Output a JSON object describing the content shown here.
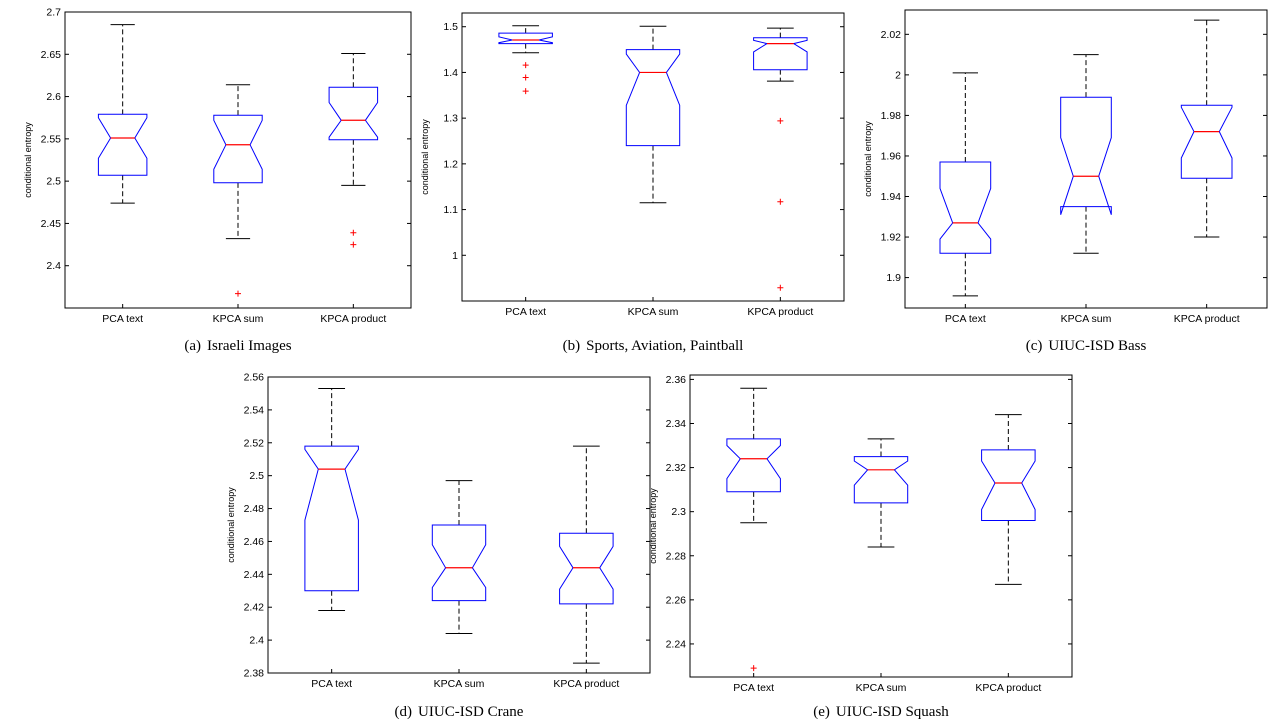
{
  "chart_data": [
    {
      "type": "box",
      "caption_tag": "(a)",
      "caption": "Israeli Images",
      "ylabel": "conditional entropy",
      "ylim": [
        2.35,
        2.7
      ],
      "yticks": [
        2.4,
        2.45,
        2.5,
        2.55,
        2.6,
        2.65,
        2.7
      ],
      "ytick_labels": [
        "2.4",
        "2.45",
        "2.5",
        "2.55",
        "2.6",
        "2.65",
        "2.7"
      ],
      "categories": [
        "PCA text",
        "KPCA sum",
        "KPCA product"
      ],
      "boxes": [
        {
          "whisker_low": 2.474,
          "q1": 2.507,
          "median": 2.551,
          "q3": 2.579,
          "whisker_high": 2.685,
          "notch_low": 2.527,
          "notch_high": 2.575,
          "outliers": []
        },
        {
          "whisker_low": 2.432,
          "q1": 2.498,
          "median": 2.543,
          "q3": 2.578,
          "whisker_high": 2.614,
          "notch_low": 2.514,
          "notch_high": 2.572,
          "outliers": [
            2.367
          ]
        },
        {
          "whisker_low": 2.495,
          "q1": 2.549,
          "median": 2.572,
          "q3": 2.611,
          "whisker_high": 2.651,
          "notch_low": 2.552,
          "notch_high": 2.593,
          "outliers": [
            2.439,
            2.425
          ]
        }
      ]
    },
    {
      "type": "box",
      "caption_tag": "(b)",
      "caption": "Sports, Aviation, Paintball",
      "ylabel": "conditional entropy",
      "ylim": [
        0.9,
        1.53
      ],
      "yticks": [
        1.0,
        1.1,
        1.2,
        1.3,
        1.4,
        1.5
      ],
      "ytick_labels": [
        "1",
        "1.1",
        "1.2",
        "1.3",
        "1.4",
        "1.5"
      ],
      "categories": [
        "PCA text",
        "KPCA sum",
        "KPCA product"
      ],
      "boxes": [
        {
          "whisker_low": 1.443,
          "q1": 1.463,
          "median": 1.471,
          "q3": 1.486,
          "whisker_high": 1.502,
          "notch_low": 1.465,
          "notch_high": 1.478,
          "outliers": [
            1.416,
            1.389,
            1.359
          ]
        },
        {
          "whisker_low": 1.115,
          "q1": 1.24,
          "median": 1.4,
          "q3": 1.45,
          "whisker_high": 1.501,
          "notch_low": 1.328,
          "notch_high": 1.44,
          "outliers": []
        },
        {
          "whisker_low": 1.381,
          "q1": 1.406,
          "median": 1.463,
          "q3": 1.476,
          "whisker_high": 1.497,
          "notch_low": 1.445,
          "notch_high": 1.47,
          "outliers": [
            1.294,
            1.117,
            0.929
          ]
        }
      ]
    },
    {
      "type": "box",
      "caption_tag": "(c)",
      "caption": "UIUC-ISD Bass",
      "ylabel": "conditional entropy",
      "ylim": [
        1.885,
        2.032
      ],
      "yticks": [
        1.9,
        1.92,
        1.94,
        1.96,
        1.98,
        2.0,
        2.02
      ],
      "ytick_labels": [
        "1.9",
        "1.92",
        "1.94",
        "1.96",
        "1.98",
        "2",
        "2.02"
      ],
      "categories": [
        "PCA text",
        "KPCA sum",
        "KPCA product"
      ],
      "boxes": [
        {
          "whisker_low": 1.891,
          "q1": 1.912,
          "median": 1.927,
          "q3": 1.957,
          "whisker_high": 2.001,
          "notch_low": 1.919,
          "notch_high": 1.944,
          "outliers": []
        },
        {
          "whisker_low": 1.912,
          "q1": 1.935,
          "median": 1.95,
          "q3": 1.989,
          "whisker_high": 2.01,
          "notch_low": 1.931,
          "notch_high": 1.969,
          "outliers": []
        },
        {
          "whisker_low": 1.92,
          "q1": 1.949,
          "median": 1.972,
          "q3": 1.985,
          "whisker_high": 2.027,
          "notch_low": 1.959,
          "notch_high": 1.984,
          "outliers": []
        }
      ]
    },
    {
      "type": "box",
      "caption_tag": "(d)",
      "caption": "UIUC-ISD Crane",
      "ylabel": "conditional entropy",
      "ylim": [
        2.38,
        2.56
      ],
      "yticks": [
        2.38,
        2.4,
        2.42,
        2.44,
        2.46,
        2.48,
        2.5,
        2.52,
        2.54,
        2.56
      ],
      "ytick_labels": [
        "2.38",
        "2.4",
        "2.42",
        "2.44",
        "2.46",
        "2.48",
        "2.5",
        "2.52",
        "2.54",
        "2.56"
      ],
      "categories": [
        "PCA text",
        "KPCA sum",
        "KPCA product"
      ],
      "boxes": [
        {
          "whisker_low": 2.418,
          "q1": 2.43,
          "median": 2.504,
          "q3": 2.518,
          "whisker_high": 2.553,
          "notch_low": 2.473,
          "notch_high": 2.516,
          "outliers": []
        },
        {
          "whisker_low": 2.404,
          "q1": 2.424,
          "median": 2.444,
          "q3": 2.47,
          "whisker_high": 2.497,
          "notch_low": 2.432,
          "notch_high": 2.458,
          "outliers": []
        },
        {
          "whisker_low": 2.386,
          "q1": 2.422,
          "median": 2.444,
          "q3": 2.465,
          "whisker_high": 2.518,
          "notch_low": 2.431,
          "notch_high": 2.457,
          "outliers": []
        }
      ]
    },
    {
      "type": "box",
      "caption_tag": "(e)",
      "caption": "UIUC-ISD Squash",
      "ylabel": "conditional entropy",
      "ylim": [
        2.225,
        2.362
      ],
      "yticks": [
        2.24,
        2.26,
        2.28,
        2.3,
        2.32,
        2.34,
        2.36
      ],
      "ytick_labels": [
        "2.24",
        "2.26",
        "2.28",
        "2.3",
        "2.32",
        "2.34",
        "2.36"
      ],
      "categories": [
        "PCA text",
        "KPCA sum",
        "KPCA product"
      ],
      "boxes": [
        {
          "whisker_low": 2.295,
          "q1": 2.309,
          "median": 2.324,
          "q3": 2.333,
          "whisker_high": 2.356,
          "notch_low": 2.315,
          "notch_high": 2.33,
          "outliers": [
            2.229
          ]
        },
        {
          "whisker_low": 2.284,
          "q1": 2.304,
          "median": 2.319,
          "q3": 2.325,
          "whisker_high": 2.333,
          "notch_low": 2.312,
          "notch_high": 2.323,
          "outliers": []
        },
        {
          "whisker_low": 2.267,
          "q1": 2.296,
          "median": 2.313,
          "q3": 2.328,
          "whisker_high": 2.344,
          "notch_low": 2.301,
          "notch_high": 2.323,
          "outliers": []
        }
      ]
    }
  ],
  "colors": {
    "box": "#0000ff",
    "median": "#ff0000",
    "whisker": "#000000",
    "outlier": "#ff0000",
    "axes": "#000000"
  }
}
